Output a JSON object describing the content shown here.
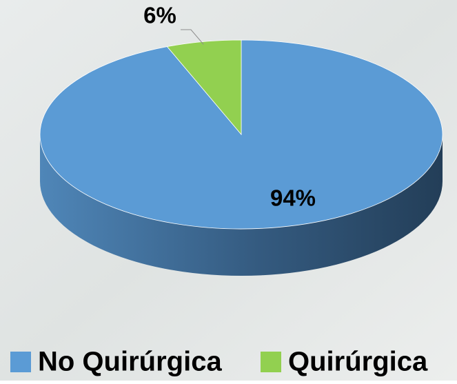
{
  "chart_data": {
    "type": "pie",
    "categories": [
      "No Quirúrgica",
      "Quirúrgica"
    ],
    "values": [
      94,
      6
    ],
    "value_labels": [
      "94%",
      "6%"
    ],
    "colors": [
      "#5b9bd5",
      "#92d050"
    ],
    "legend": "bottom"
  }
}
